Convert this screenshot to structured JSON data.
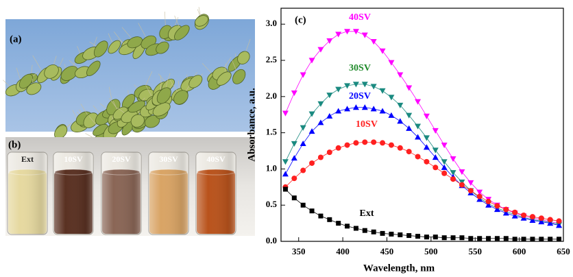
{
  "panels": {
    "a_label": "(a)",
    "b_label": "(b)",
    "vial_labels": [
      "Ext",
      "10SV",
      "20SV",
      "30SV",
      "40SV"
    ]
  },
  "chart_data": {
    "type": "scatter",
    "panel_label": "(c)",
    "x_label": "Wavelength, nm",
    "y_label": "Absorbance, a.u.",
    "x": [
      335,
      345,
      355,
      365,
      375,
      385,
      395,
      405,
      415,
      425,
      435,
      445,
      455,
      465,
      475,
      485,
      495,
      505,
      515,
      525,
      535,
      545,
      555,
      565,
      575,
      585,
      595,
      605,
      615,
      625,
      635,
      645
    ],
    "xlim": [
      330,
      650
    ],
    "xticks": [
      350,
      400,
      450,
      500,
      550,
      600,
      650
    ],
    "ylim": [
      0,
      3.22
    ],
    "yticks": [
      {
        "value": 0,
        "label": "0.0"
      },
      0.5,
      {
        "value": 1,
        "label": "1.0"
      },
      1.5,
      {
        "value": 2,
        "label": "2.0"
      },
      2.5,
      {
        "value": 3,
        "label": "3.0"
      }
    ],
    "series": [
      {
        "name": "40SV",
        "color": "#ff00ff",
        "marker": "triangle-down",
        "values": [
          1.77,
          2.05,
          2.3,
          2.5,
          2.65,
          2.77,
          2.86,
          2.9,
          2.9,
          2.85,
          2.76,
          2.63,
          2.47,
          2.3,
          2.12,
          1.93,
          1.73,
          1.53,
          1.33,
          1.14,
          0.96,
          0.81,
          0.68,
          0.58,
          0.5,
          0.44,
          0.39,
          0.35,
          0.32,
          0.3,
          0.27,
          0.25
        ]
      },
      {
        "name": "30SV",
        "color": "#1a8a80",
        "marker": "triangle-down",
        "values": [
          1.1,
          1.35,
          1.57,
          1.76,
          1.9,
          2.02,
          2.1,
          2.15,
          2.17,
          2.17,
          2.14,
          2.08,
          1.99,
          1.88,
          1.74,
          1.59,
          1.43,
          1.26,
          1.1,
          0.95,
          0.82,
          0.7,
          0.6,
          0.52,
          0.46,
          0.41,
          0.37,
          0.33,
          0.3,
          0.28,
          0.26,
          0.23
        ]
      },
      {
        "name": "20SV",
        "color": "#0000ff",
        "marker": "triangle-up",
        "values": [
          0.93,
          1.15,
          1.35,
          1.52,
          1.64,
          1.73,
          1.8,
          1.83,
          1.85,
          1.85,
          1.83,
          1.8,
          1.74,
          1.66,
          1.56,
          1.44,
          1.3,
          1.16,
          1.02,
          0.89,
          0.77,
          0.67,
          0.58,
          0.5,
          0.44,
          0.39,
          0.35,
          0.32,
          0.29,
          0.27,
          0.25,
          0.22
        ]
      },
      {
        "name": "10SV",
        "color": "#ff2020",
        "marker": "circle",
        "values": [
          0.75,
          0.87,
          0.98,
          1.08,
          1.16,
          1.23,
          1.29,
          1.33,
          1.36,
          1.37,
          1.37,
          1.36,
          1.33,
          1.29,
          1.24,
          1.17,
          1.1,
          1.02,
          0.94,
          0.86,
          0.78,
          0.7,
          0.62,
          0.55,
          0.49,
          0.44,
          0.4,
          0.36,
          0.34,
          0.32,
          0.3,
          0.28
        ]
      },
      {
        "name": "Ext",
        "color": "#000000",
        "marker": "square",
        "values": [
          0.72,
          0.6,
          0.5,
          0.42,
          0.35,
          0.3,
          0.25,
          0.21,
          0.18,
          0.15,
          0.13,
          0.11,
          0.1,
          0.09,
          0.08,
          0.07,
          0.06,
          0.06,
          0.05,
          0.05,
          0.05,
          0.04,
          0.04,
          0.04,
          0.04,
          0.04,
          0.03,
          0.03,
          0.03,
          0.03,
          0.03,
          0.03
        ]
      }
    ]
  }
}
